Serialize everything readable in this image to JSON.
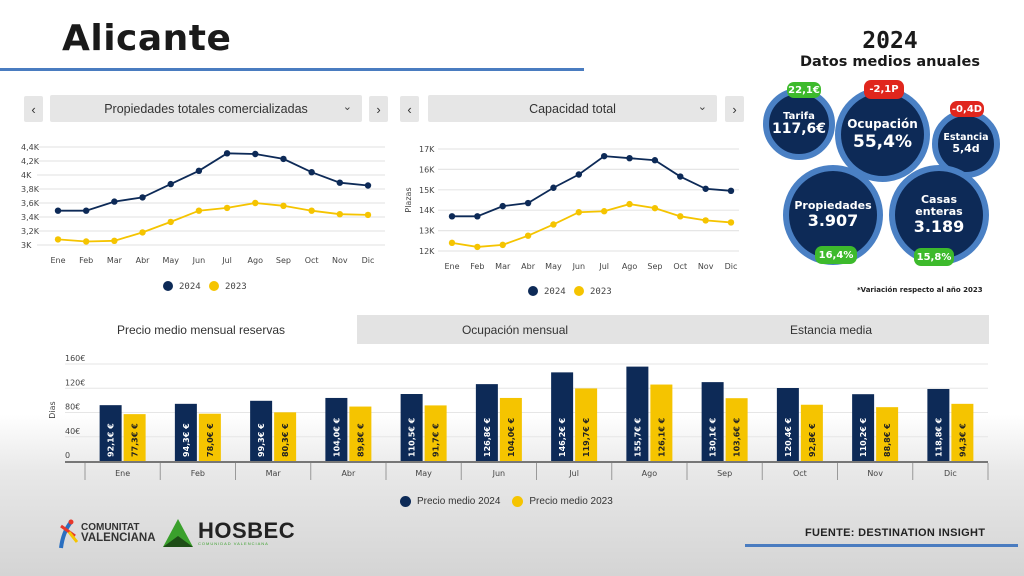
{
  "header": {
    "title": "Alicante"
  },
  "panel_left": {
    "prev_label": "‹",
    "next_label": "›",
    "dropdown_icon": "chevron-down-icon",
    "dropdown_value": "Propiedades totales comercializadas"
  },
  "panel_right": {
    "prev_label": "‹",
    "next_label": "›",
    "dropdown_value": "Capacidad total"
  },
  "summary": {
    "year": "2024",
    "subtitle": "Datos medios anuales",
    "kpis": [
      {
        "label": "Tarifa",
        "value": "117,6€",
        "change": "22,1€",
        "change_status": "positive"
      },
      {
        "label": "Ocupación",
        "value": "55,4%",
        "change": "-2,1P",
        "change_status": "negative"
      },
      {
        "label": "Estancia",
        "value": "5,4d",
        "change": "-0,4D",
        "change_status": "negative"
      },
      {
        "label": "Propiedades",
        "value": "3.907",
        "change": "16,4%",
        "change_status": "positive"
      },
      {
        "label": "Casas enteras",
        "value": "3.189",
        "change": "15,8%",
        "change_status": "positive"
      }
    ],
    "footnote": "*Variación respecto al año 2023",
    "colors": {
      "positive": "#3dba2c",
      "negative": "#e0261d",
      "bubble": "#0d2a57",
      "ring": "#4a80c4"
    }
  },
  "tabs": [
    {
      "label": "Precio medio mensual reservas",
      "active": true
    },
    {
      "label": "Ocupación mensual",
      "active": false
    },
    {
      "label": "Estancia media",
      "active": false
    }
  ],
  "footer": {
    "logo1_line1": "COMUNITAT",
    "logo1_line2": "VALENCIANA",
    "logo2_name": "HOSBEC",
    "logo2_sub": "COMUNIDAD VALENCIANA",
    "source": "FUENTE:  DESTINATION INSIGHT"
  },
  "chart_data": [
    {
      "type": "line",
      "title": "Propiedades totales comercializadas",
      "xlabel": "",
      "ylabel": "",
      "categories": [
        "Ene",
        "Feb",
        "Mar",
        "Abr",
        "May",
        "Jun",
        "Jul",
        "Ago",
        "Sep",
        "Oct",
        "Nov",
        "Dic"
      ],
      "yticks": [
        "3K",
        "3,2K",
        "3,4K",
        "3,6K",
        "3,8K",
        "4K",
        "4,2K",
        "4,4K"
      ],
      "ylim": [
        3000,
        4400
      ],
      "grid": true,
      "legend": "bottom",
      "series": [
        {
          "name": "2024",
          "color": "#0d2a57",
          "values": [
            3490,
            3490,
            3620,
            3680,
            3870,
            4060,
            4310,
            4300,
            4230,
            4040,
            3890,
            3850
          ]
        },
        {
          "name": "2023",
          "color": "#f5c400",
          "values": [
            3080,
            3050,
            3060,
            3180,
            3330,
            3490,
            3530,
            3600,
            3560,
            3490,
            3440,
            3430
          ]
        }
      ]
    },
    {
      "type": "line",
      "title": "Capacidad total",
      "xlabel": "",
      "ylabel": "Plazas",
      "categories": [
        "Ene",
        "Feb",
        "Mar",
        "Abr",
        "May",
        "Jun",
        "Jul",
        "Ago",
        "Sep",
        "Oct",
        "Nov",
        "Dic"
      ],
      "yticks": [
        "12K",
        "13K",
        "14K",
        "15K",
        "16K",
        "17K"
      ],
      "ylim": [
        12000,
        17000
      ],
      "grid": true,
      "legend": "bottom",
      "series": [
        {
          "name": "2024",
          "color": "#0d2a57",
          "values": [
            13700,
            13700,
            14200,
            14350,
            15100,
            15750,
            16650,
            16550,
            16450,
            15650,
            15050,
            14950
          ]
        },
        {
          "name": "2023",
          "color": "#f5c400",
          "values": [
            12400,
            12200,
            12300,
            12750,
            13300,
            13900,
            13950,
            14300,
            14100,
            13700,
            13500,
            13400
          ]
        }
      ]
    },
    {
      "type": "bar",
      "title": "Precio medio mensual reservas",
      "xlabel": "",
      "ylabel": "Dias",
      "categories": [
        "Ene",
        "Feb",
        "Mar",
        "Abr",
        "May",
        "Jun",
        "Jul",
        "Ago",
        "Sep",
        "Oct",
        "Nov",
        "Dic"
      ],
      "yticks": [
        "0",
        "40€",
        "80€",
        "120€",
        "160€"
      ],
      "ylim": [
        0,
        160
      ],
      "grid": true,
      "legend": "bottom",
      "series": [
        {
          "name": "Precio medio 2024",
          "color": "#0d2a57",
          "values": [
            92.1,
            94.3,
            99.3,
            104.0,
            110.5,
            126.8,
            146.2,
            155.7,
            130.1,
            120.4,
            110.2,
            118.8
          ],
          "labels": [
            "92,1€ €",
            "94,3€ €",
            "99,3€ €",
            "104,0€ €",
            "110,5€ €",
            "126,8€ €",
            "146,2€ €",
            "155,7€ €",
            "130,1€ €",
            "120,4€ €",
            "110,2€ €",
            "118,8€ €"
          ]
        },
        {
          "name": "Precio medio 2023",
          "color": "#f5c400",
          "values": [
            77.3,
            78.0,
            80.3,
            89.8,
            91.7,
            104.0,
            119.7,
            126.1,
            103.6,
            92.8,
            88.8,
            94.3
          ],
          "labels": [
            "77,3€ €",
            "78,0€ €",
            "80,3€ €",
            "89,8€ €",
            "91,7€ €",
            "104,0€ €",
            "119,7€ €",
            "126,1€ €",
            "103,6€ €",
            "92,8€ €",
            "88,8€ €",
            "94,3€ €"
          ]
        }
      ]
    }
  ]
}
